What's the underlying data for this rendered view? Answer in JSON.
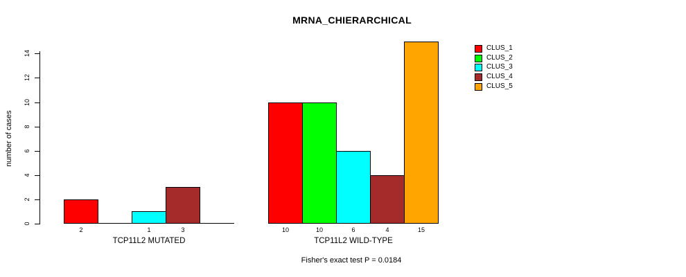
{
  "chart_data": {
    "type": "bar",
    "title": "MRNA_CHIERARCHICAL",
    "ylabel": "number of cases",
    "footer": "Fisher's exact test P = 0.0184",
    "ylim": [
      0,
      15
    ],
    "yticks": [
      0,
      2,
      4,
      6,
      8,
      10,
      12,
      14
    ],
    "grid": false,
    "legend_position": "top-right",
    "legend_boxed": false,
    "series": [
      {
        "name": "CLUS_1",
        "color": "#FF0000"
      },
      {
        "name": "CLUS_2",
        "color": "#00FF00"
      },
      {
        "name": "CLUS_3",
        "color": "#00FFFF"
      },
      {
        "name": "CLUS_4",
        "color": "#A52A2A"
      },
      {
        "name": "CLUS_5",
        "color": "#FFA500"
      }
    ],
    "groups": [
      {
        "label": "TCP11L2 MUTATED",
        "values": [
          2,
          0,
          1,
          3,
          0
        ],
        "bar_labels": [
          "2",
          "",
          "1",
          "3",
          ""
        ]
      },
      {
        "label": "TCP11L2 WILD-TYPE",
        "values": [
          10,
          10,
          6,
          4,
          15
        ],
        "bar_labels": [
          "10",
          "10",
          "6",
          "4",
          "15"
        ]
      }
    ]
  }
}
